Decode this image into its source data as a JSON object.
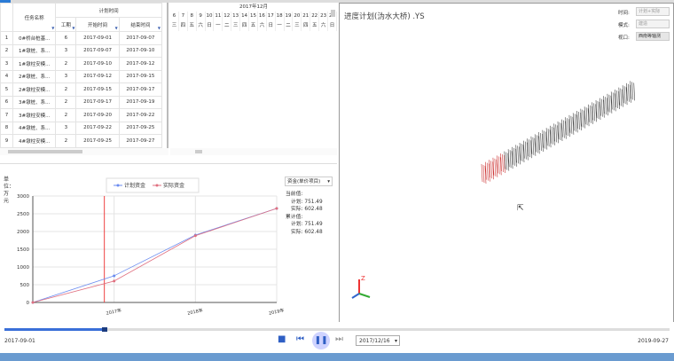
{
  "grid": {
    "headers": {
      "task_name": "任务名称",
      "planned_time": "计划时间",
      "duration": "工期",
      "start": "开始时间",
      "end": "结束时间"
    },
    "rows": [
      [
        "1",
        "0#桥台桩基...",
        "6",
        "2017-09-01",
        "2017-09-07"
      ],
      [
        "2",
        "1#墩桩、系...",
        "3",
        "2017-09-07",
        "2017-09-10"
      ],
      [
        "3",
        "1#墩柱安模...",
        "2",
        "2017-09-10",
        "2017-09-12"
      ],
      [
        "4",
        "2#墩桩、系...",
        "3",
        "2017-09-12",
        "2017-09-15"
      ],
      [
        "5",
        "2#墩柱安模...",
        "2",
        "2017-09-15",
        "2017-09-17"
      ],
      [
        "6",
        "3#墩桩、系...",
        "2",
        "2017-09-17",
        "2017-09-19"
      ],
      [
        "7",
        "3#墩柱安模...",
        "2",
        "2017-09-20",
        "2017-09-22"
      ],
      [
        "8",
        "4#墩桩、系...",
        "3",
        "2017-09-22",
        "2017-09-25"
      ],
      [
        "9",
        "4#墩柱安模...",
        "2",
        "2017-09-25",
        "2017-09-27"
      ]
    ]
  },
  "gantt": {
    "month": "2017年12月",
    "days": [
      "6",
      "7",
      "8",
      "9",
      "10",
      "11",
      "12",
      "13",
      "14",
      "15",
      "16",
      "17",
      "18",
      "19",
      "20",
      "21",
      "22",
      "23",
      "24"
    ],
    "weekdays": [
      "三",
      "四",
      "五",
      "六",
      "日",
      "一",
      "二",
      "三",
      "四",
      "五",
      "六",
      "日",
      "一",
      "二",
      "三",
      "四",
      "五",
      "六",
      "日"
    ]
  },
  "chart_data": {
    "type": "line",
    "ylabel": "单位：万元",
    "categories": [
      "",
      "2017年",
      "2018年",
      "2019年"
    ],
    "ylim": [
      0,
      3000
    ],
    "yticks": [
      0,
      500,
      1000,
      1500,
      2000,
      2500,
      3000
    ],
    "series": [
      {
        "name": "计划资金",
        "color": "#6b8cf0",
        "values": [
          0,
          751.49,
          1900,
          2650
        ]
      },
      {
        "name": "实际资金",
        "color": "#e07080",
        "values": [
          0,
          602.48,
          1880,
          2650
        ]
      }
    ],
    "current_marker_fraction": 0.88,
    "grid": true,
    "legend": "top"
  },
  "chart_side": {
    "dropdown": "资金(单价项目)",
    "current_label": "当前值:",
    "cumulative_label": "累计值:",
    "plan_label": "计划:",
    "actual_label": "实际:",
    "current_plan": "751.49",
    "current_actual": "602.48",
    "cum_plan": "751.49",
    "cum_actual": "602.48"
  },
  "view": {
    "title": "进度计划(沩水大桥) .YS",
    "time_label": "时间:",
    "time_value": "计划+实际",
    "mode_label": "模式:",
    "mode_value": "建造",
    "viewport_label": "视口:",
    "viewport_value": "西南等轴测",
    "axis_z": "Z"
  },
  "playback": {
    "start_date": "2017-09-01",
    "end_date": "2019-09-27",
    "current_date": "2017/12/16",
    "progress": 0.15
  }
}
